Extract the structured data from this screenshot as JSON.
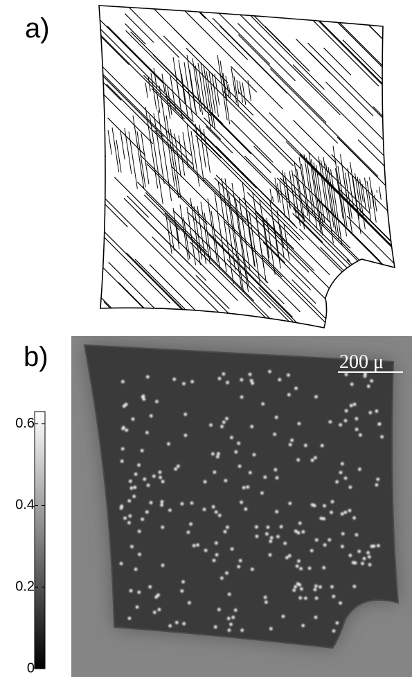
{
  "panels": [
    {
      "label": "a)"
    },
    {
      "label": "b)",
      "scale_bar": "200 μ",
      "colorbar": {
        "lim": [
          0,
          0.63
        ],
        "ticks": [
          0,
          0.2,
          0.4,
          0.6
        ]
      }
    }
  ]
}
